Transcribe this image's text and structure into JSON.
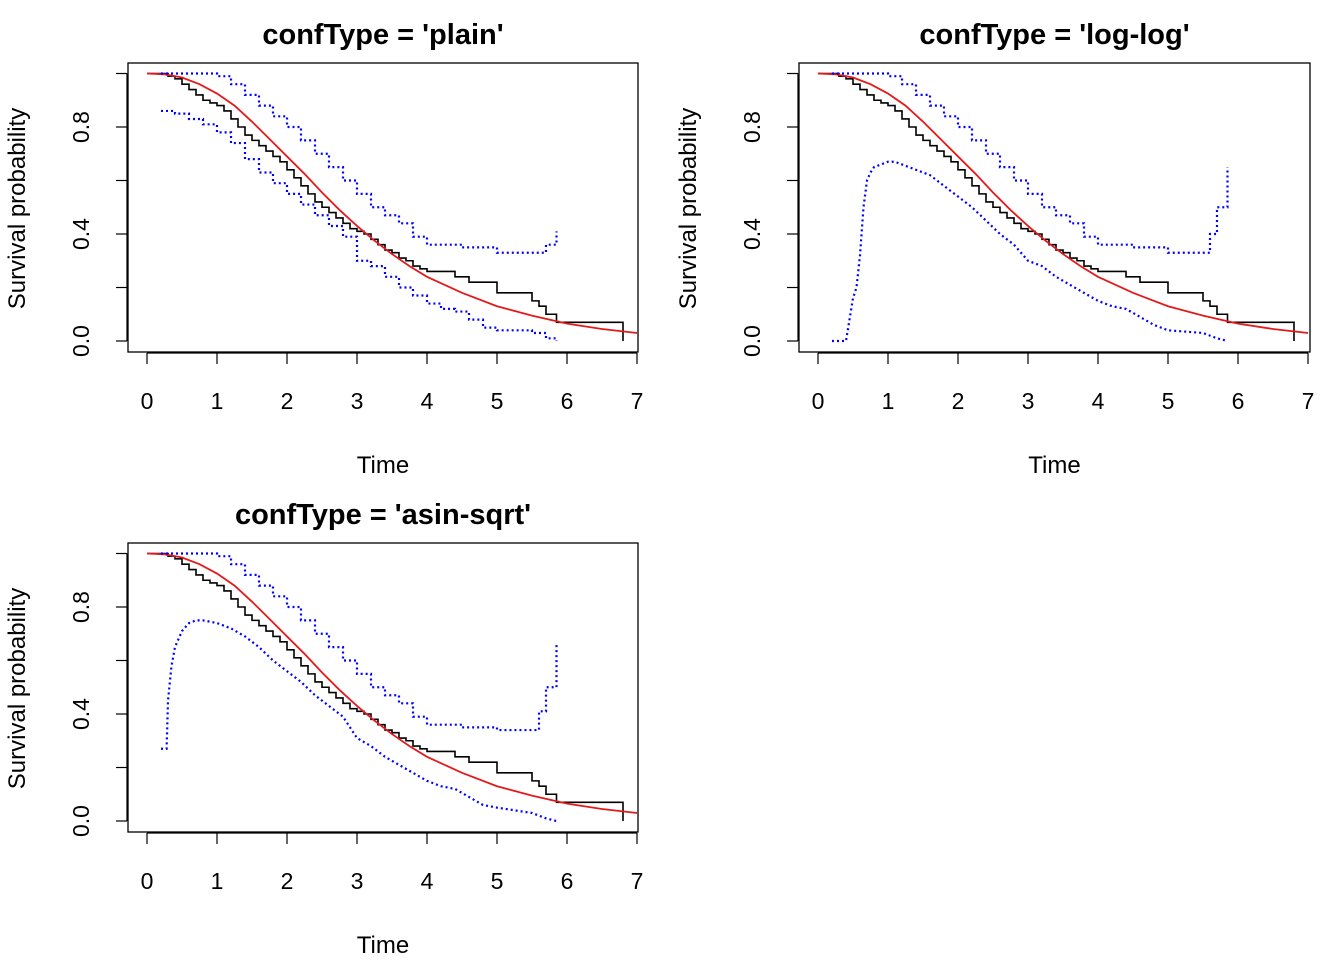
{
  "colors": {
    "km": "#000000",
    "fit": "#e31a1c",
    "ci": "#0000ff"
  },
  "chart_data": [
    {
      "type": "line",
      "title": "confType = 'plain'",
      "xlabel": "Time",
      "ylabel": "Survival probability",
      "xlim": [
        0,
        7
      ],
      "ylim": [
        0,
        1
      ],
      "xticks": [
        "0",
        "1",
        "2",
        "3",
        "4",
        "5",
        "6",
        "7"
      ],
      "yticks": [
        "0.0",
        "0.4",
        "0.8"
      ],
      "series": [
        {
          "role": "km",
          "style": "step",
          "x": [
            0,
            0.1,
            0.2,
            0.3,
            0.4,
            0.5,
            0.6,
            0.7,
            0.8,
            0.9,
            1.0,
            1.1,
            1.2,
            1.3,
            1.4,
            1.5,
            1.6,
            1.7,
            1.8,
            1.9,
            2.0,
            2.1,
            2.2,
            2.3,
            2.4,
            2.5,
            2.6,
            2.7,
            2.8,
            2.9,
            3.0,
            3.1,
            3.2,
            3.3,
            3.4,
            3.5,
            3.6,
            3.7,
            3.8,
            3.9,
            4.0,
            4.4,
            4.6,
            5.0,
            5.3,
            5.5,
            5.6,
            5.7,
            5.85,
            6.8
          ],
          "y": [
            1.0,
            1.0,
            1.0,
            0.99,
            0.98,
            0.96,
            0.94,
            0.92,
            0.9,
            0.89,
            0.88,
            0.86,
            0.83,
            0.8,
            0.77,
            0.75,
            0.73,
            0.71,
            0.69,
            0.67,
            0.64,
            0.61,
            0.58,
            0.55,
            0.52,
            0.5,
            0.48,
            0.46,
            0.44,
            0.42,
            0.41,
            0.4,
            0.38,
            0.36,
            0.34,
            0.33,
            0.31,
            0.3,
            0.28,
            0.27,
            0.26,
            0.24,
            0.22,
            0.18,
            0.18,
            0.15,
            0.13,
            0.1,
            0.07,
            0.0
          ]
        },
        {
          "role": "fit",
          "style": "curve",
          "x": [
            0,
            0.25,
            0.5,
            0.75,
            1.0,
            1.25,
            1.5,
            1.75,
            2.0,
            2.25,
            2.5,
            2.75,
            3.0,
            3.25,
            3.5,
            3.75,
            4.0,
            4.5,
            5.0,
            5.5,
            6.0,
            6.5,
            7.0
          ],
          "y": [
            1.0,
            0.997,
            0.985,
            0.96,
            0.925,
            0.88,
            0.82,
            0.755,
            0.69,
            0.625,
            0.555,
            0.49,
            0.43,
            0.375,
            0.325,
            0.28,
            0.24,
            0.18,
            0.13,
            0.095,
            0.065,
            0.045,
            0.03
          ]
        },
        {
          "role": "ci_upper",
          "style": "step",
          "x": [
            0.2,
            0.6,
            0.8,
            1.0,
            1.2,
            1.4,
            1.6,
            1.8,
            2.0,
            2.2,
            2.4,
            2.6,
            2.8,
            3.0,
            3.2,
            3.4,
            3.6,
            3.8,
            4.0,
            4.5,
            5.0,
            5.5,
            5.7,
            5.85
          ],
          "y": [
            1.0,
            1.0,
            1.0,
            0.99,
            0.96,
            0.92,
            0.88,
            0.84,
            0.8,
            0.75,
            0.7,
            0.65,
            0.6,
            0.55,
            0.5,
            0.47,
            0.44,
            0.39,
            0.36,
            0.35,
            0.33,
            0.33,
            0.36,
            0.41
          ]
        },
        {
          "role": "ci_lower",
          "style": "step",
          "x": [
            0.2,
            0.4,
            0.6,
            0.8,
            1.0,
            1.2,
            1.4,
            1.6,
            1.8,
            2.0,
            2.2,
            2.4,
            2.6,
            2.8,
            3.0,
            3.2,
            3.4,
            3.6,
            3.8,
            4.0,
            4.2,
            4.4,
            4.6,
            4.8,
            5.0,
            5.5,
            5.7,
            5.85
          ],
          "y": [
            0.86,
            0.85,
            0.83,
            0.81,
            0.78,
            0.74,
            0.68,
            0.63,
            0.59,
            0.55,
            0.51,
            0.47,
            0.43,
            0.39,
            0.3,
            0.28,
            0.24,
            0.2,
            0.17,
            0.14,
            0.12,
            0.11,
            0.08,
            0.05,
            0.04,
            0.03,
            0.01,
            0.0
          ]
        }
      ]
    },
    {
      "type": "line",
      "title": "confType = 'log-log'",
      "xlabel": "Time",
      "ylabel": "Survival probability",
      "xlim": [
        0,
        7
      ],
      "ylim": [
        0,
        1
      ],
      "xticks": [
        "0",
        "1",
        "2",
        "3",
        "4",
        "5",
        "6",
        "7"
      ],
      "yticks": [
        "0.0",
        "0.4",
        "0.8"
      ],
      "series": [
        {
          "role": "km",
          "style": "step",
          "x": [
            0,
            0.1,
            0.2,
            0.3,
            0.4,
            0.5,
            0.6,
            0.7,
            0.8,
            0.9,
            1.0,
            1.1,
            1.2,
            1.3,
            1.4,
            1.5,
            1.6,
            1.7,
            1.8,
            1.9,
            2.0,
            2.1,
            2.2,
            2.3,
            2.4,
            2.5,
            2.6,
            2.7,
            2.8,
            2.9,
            3.0,
            3.1,
            3.2,
            3.3,
            3.4,
            3.5,
            3.6,
            3.7,
            3.8,
            3.9,
            4.0,
            4.4,
            4.6,
            5.0,
            5.3,
            5.5,
            5.6,
            5.7,
            5.85,
            6.8
          ],
          "y": [
            1.0,
            1.0,
            1.0,
            0.99,
            0.98,
            0.96,
            0.94,
            0.92,
            0.9,
            0.89,
            0.88,
            0.86,
            0.83,
            0.8,
            0.77,
            0.75,
            0.73,
            0.71,
            0.69,
            0.67,
            0.64,
            0.61,
            0.58,
            0.55,
            0.52,
            0.5,
            0.48,
            0.46,
            0.44,
            0.42,
            0.41,
            0.4,
            0.38,
            0.36,
            0.34,
            0.33,
            0.31,
            0.3,
            0.28,
            0.27,
            0.26,
            0.24,
            0.22,
            0.18,
            0.18,
            0.15,
            0.13,
            0.1,
            0.07,
            0.0
          ]
        },
        {
          "role": "fit",
          "style": "curve",
          "x": [
            0,
            0.25,
            0.5,
            0.75,
            1.0,
            1.25,
            1.5,
            1.75,
            2.0,
            2.25,
            2.5,
            2.75,
            3.0,
            3.25,
            3.5,
            3.75,
            4.0,
            4.5,
            5.0,
            5.5,
            6.0,
            6.5,
            7.0
          ],
          "y": [
            1.0,
            0.997,
            0.985,
            0.96,
            0.925,
            0.88,
            0.82,
            0.755,
            0.69,
            0.625,
            0.555,
            0.49,
            0.43,
            0.375,
            0.325,
            0.28,
            0.24,
            0.18,
            0.13,
            0.095,
            0.065,
            0.045,
            0.03
          ]
        },
        {
          "role": "ci_upper",
          "style": "step",
          "x": [
            0.2,
            0.6,
            0.8,
            1.0,
            1.2,
            1.4,
            1.6,
            1.8,
            2.0,
            2.2,
            2.4,
            2.6,
            2.8,
            3.0,
            3.2,
            3.4,
            3.6,
            3.8,
            4.0,
            4.5,
            5.0,
            5.5,
            5.6,
            5.7,
            5.85
          ],
          "y": [
            1.0,
            1.0,
            1.0,
            0.99,
            0.96,
            0.92,
            0.88,
            0.84,
            0.8,
            0.75,
            0.7,
            0.65,
            0.6,
            0.55,
            0.5,
            0.47,
            0.44,
            0.39,
            0.36,
            0.35,
            0.33,
            0.33,
            0.4,
            0.5,
            0.65
          ]
        },
        {
          "role": "ci_lower",
          "style": "curve",
          "x": [
            0.2,
            0.4,
            0.45,
            0.5,
            0.55,
            0.6,
            0.65,
            0.7,
            0.75,
            0.8,
            0.9,
            1.0,
            1.1,
            1.2,
            1.4,
            1.6,
            1.8,
            2.0,
            2.2,
            2.4,
            2.6,
            2.8,
            3.0,
            3.2,
            3.4,
            3.6,
            3.8,
            4.0,
            4.2,
            4.4,
            4.6,
            4.8,
            5.0,
            5.5,
            5.7,
            5.85
          ],
          "y": [
            0.0,
            0.0,
            0.08,
            0.16,
            0.2,
            0.32,
            0.5,
            0.6,
            0.63,
            0.65,
            0.66,
            0.67,
            0.67,
            0.66,
            0.64,
            0.62,
            0.58,
            0.54,
            0.5,
            0.45,
            0.4,
            0.36,
            0.3,
            0.28,
            0.24,
            0.21,
            0.18,
            0.15,
            0.13,
            0.12,
            0.09,
            0.06,
            0.04,
            0.03,
            0.01,
            0.0
          ]
        }
      ]
    },
    {
      "type": "line",
      "title": "confType = 'asin-sqrt'",
      "xlabel": "Time",
      "ylabel": "Survival probability",
      "xlim": [
        0,
        7
      ],
      "ylim": [
        0,
        1
      ],
      "xticks": [
        "0",
        "1",
        "2",
        "3",
        "4",
        "5",
        "6",
        "7"
      ],
      "yticks": [
        "0.0",
        "0.4",
        "0.8"
      ],
      "series": [
        {
          "role": "km",
          "style": "step",
          "x": [
            0,
            0.1,
            0.2,
            0.3,
            0.4,
            0.5,
            0.6,
            0.7,
            0.8,
            0.9,
            1.0,
            1.1,
            1.2,
            1.3,
            1.4,
            1.5,
            1.6,
            1.7,
            1.8,
            1.9,
            2.0,
            2.1,
            2.2,
            2.3,
            2.4,
            2.5,
            2.6,
            2.7,
            2.8,
            2.9,
            3.0,
            3.1,
            3.2,
            3.3,
            3.4,
            3.5,
            3.6,
            3.7,
            3.8,
            3.9,
            4.0,
            4.4,
            4.6,
            5.0,
            5.3,
            5.5,
            5.6,
            5.7,
            5.85,
            6.8
          ],
          "y": [
            1.0,
            1.0,
            1.0,
            0.99,
            0.98,
            0.96,
            0.94,
            0.92,
            0.9,
            0.89,
            0.88,
            0.86,
            0.83,
            0.8,
            0.77,
            0.75,
            0.73,
            0.71,
            0.69,
            0.67,
            0.64,
            0.61,
            0.58,
            0.55,
            0.52,
            0.5,
            0.48,
            0.46,
            0.44,
            0.42,
            0.41,
            0.4,
            0.38,
            0.36,
            0.34,
            0.33,
            0.31,
            0.3,
            0.28,
            0.27,
            0.26,
            0.24,
            0.22,
            0.18,
            0.18,
            0.15,
            0.13,
            0.1,
            0.07,
            0.0
          ]
        },
        {
          "role": "fit",
          "style": "curve",
          "x": [
            0,
            0.25,
            0.5,
            0.75,
            1.0,
            1.25,
            1.5,
            1.75,
            2.0,
            2.25,
            2.5,
            2.75,
            3.0,
            3.25,
            3.5,
            3.75,
            4.0,
            4.5,
            5.0,
            5.5,
            6.0,
            6.5,
            7.0
          ],
          "y": [
            1.0,
            0.997,
            0.985,
            0.96,
            0.925,
            0.88,
            0.82,
            0.755,
            0.69,
            0.625,
            0.555,
            0.49,
            0.43,
            0.375,
            0.325,
            0.28,
            0.24,
            0.18,
            0.13,
            0.095,
            0.065,
            0.045,
            0.03
          ]
        },
        {
          "role": "ci_upper",
          "style": "step",
          "x": [
            0.2,
            0.6,
            0.8,
            1.0,
            1.2,
            1.4,
            1.6,
            1.8,
            2.0,
            2.2,
            2.4,
            2.6,
            2.8,
            3.0,
            3.2,
            3.4,
            3.6,
            3.8,
            4.0,
            4.5,
            5.0,
            5.5,
            5.6,
            5.7,
            5.85
          ],
          "y": [
            1.0,
            1.0,
            1.0,
            0.99,
            0.96,
            0.92,
            0.88,
            0.84,
            0.8,
            0.75,
            0.7,
            0.65,
            0.6,
            0.55,
            0.5,
            0.47,
            0.44,
            0.39,
            0.36,
            0.35,
            0.34,
            0.34,
            0.41,
            0.5,
            0.66
          ]
        },
        {
          "role": "ci_lower",
          "style": "curve",
          "x": [
            0.2,
            0.28,
            0.3,
            0.35,
            0.4,
            0.5,
            0.6,
            0.7,
            0.8,
            1.0,
            1.2,
            1.4,
            1.6,
            1.8,
            2.0,
            2.2,
            2.4,
            2.6,
            2.8,
            3.0,
            3.2,
            3.4,
            3.6,
            3.8,
            4.0,
            4.2,
            4.4,
            4.6,
            4.8,
            5.0,
            5.5,
            5.7,
            5.85
          ],
          "y": [
            0.27,
            0.27,
            0.45,
            0.58,
            0.65,
            0.71,
            0.74,
            0.75,
            0.75,
            0.74,
            0.72,
            0.69,
            0.65,
            0.6,
            0.56,
            0.52,
            0.47,
            0.43,
            0.39,
            0.31,
            0.28,
            0.24,
            0.21,
            0.18,
            0.15,
            0.13,
            0.12,
            0.09,
            0.06,
            0.05,
            0.03,
            0.01,
            0.0
          ]
        }
      ]
    }
  ]
}
